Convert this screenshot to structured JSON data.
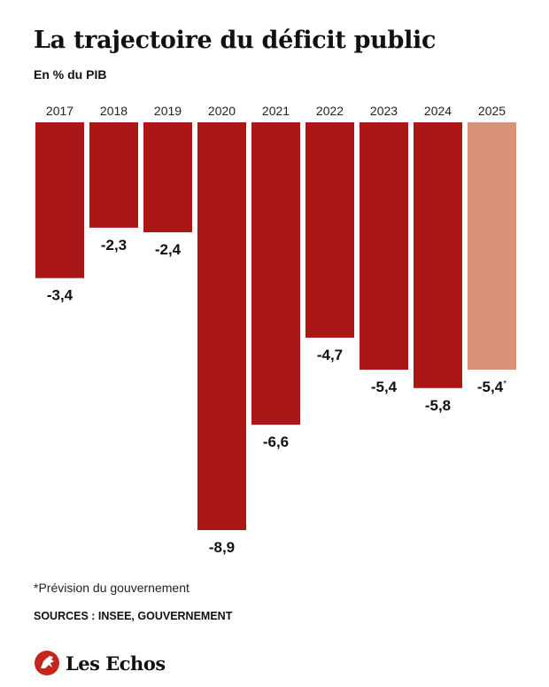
{
  "header": {
    "title": "La trajectoire du déficit public",
    "subtitle": "En % du PIB"
  },
  "chart_data": {
    "type": "bar",
    "title": "La trajectoire du déficit public",
    "subtitle": "En % du PIB",
    "categories": [
      "2017",
      "2018",
      "2019",
      "2020",
      "2021",
      "2022",
      "2023",
      "2024",
      "2025"
    ],
    "values": [
      -3.4,
      -2.3,
      -2.4,
      -8.9,
      -6.6,
      -4.7,
      -5.4,
      -5.8,
      -5.4
    ],
    "value_labels": [
      "-3,4",
      "-2,3",
      "-2,4",
      "-8,9",
      "-6,6",
      "-4,7",
      "-5,4",
      "-5,8",
      "-5,4"
    ],
    "label_suffix": [
      "",
      "",
      "",
      "",
      "",
      "",
      "",
      "",
      "*"
    ],
    "forecast": [
      false,
      false,
      false,
      false,
      false,
      false,
      false,
      false,
      true
    ],
    "ylim": [
      -8.9,
      0
    ],
    "grid": false,
    "category_axis_position": "top",
    "colors": {
      "actual": "#ab1717",
      "forecast": "#d99178"
    }
  },
  "footer": {
    "footnote": "*Prévision du gouvernement",
    "sources": "SOURCES : INSEE, GOUVERNEMENT",
    "logo_text": "Les Echos",
    "logo_icon": "les-echos-horse-icon",
    "logo_color": "#c3261c"
  }
}
